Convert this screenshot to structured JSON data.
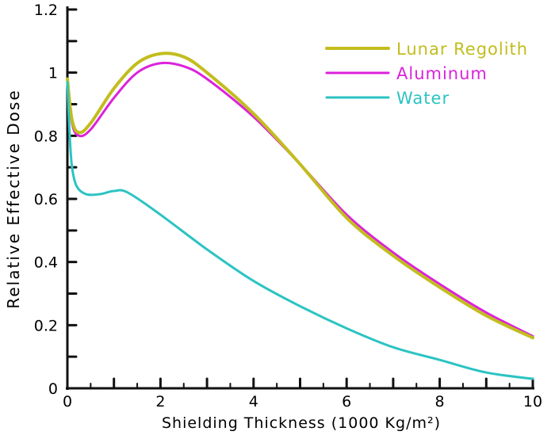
{
  "chart_data": {
    "type": "line",
    "title": "",
    "xlabel": "Shielding Thickness (1000 Kg/m²)",
    "ylabel": "Relative Effective Dose",
    "xlim": [
      0,
      10
    ],
    "ylim": [
      0,
      1.2
    ],
    "xticks": [
      0,
      2,
      4,
      6,
      8,
      10
    ],
    "xtick_labels": [
      "0",
      "2",
      "4",
      "6",
      "8",
      "10"
    ],
    "yticks": [
      0,
      0.2,
      0.4,
      0.6,
      0.8,
      1,
      1.2
    ],
    "ytick_labels": [
      "0",
      "0.2",
      "0.4",
      "0.6",
      "0.8",
      "1",
      "1.2"
    ],
    "grid": false,
    "legend_position": "top-right",
    "series": [
      {
        "name": "Lunar Regolith",
        "color": "#c2bd1e",
        "x": [
          0,
          0.1,
          0.25,
          0.5,
          1,
          1.5,
          2,
          2.5,
          3,
          4,
          5,
          6,
          7,
          8,
          9,
          10
        ],
        "y": [
          0.98,
          0.85,
          0.81,
          0.84,
          0.95,
          1.03,
          1.06,
          1.05,
          1.0,
          0.87,
          0.71,
          0.54,
          0.42,
          0.32,
          0.23,
          0.16
        ]
      },
      {
        "name": "Aluminum",
        "color": "#db22db",
        "x": [
          0,
          0.1,
          0.25,
          0.5,
          1,
          1.5,
          2,
          2.5,
          3,
          4,
          5,
          6,
          7,
          8,
          9,
          10
        ],
        "y": [
          0.98,
          0.84,
          0.8,
          0.82,
          0.92,
          1.0,
          1.03,
          1.02,
          0.98,
          0.86,
          0.71,
          0.55,
          0.43,
          0.33,
          0.24,
          0.165
        ]
      },
      {
        "name": "Water",
        "color": "#2cc3c3",
        "x": [
          0,
          0.05,
          0.1,
          0.2,
          0.4,
          0.7,
          1,
          1.3,
          2,
          3,
          4,
          5,
          6,
          7,
          8,
          9,
          10
        ],
        "y": [
          0.97,
          0.8,
          0.7,
          0.64,
          0.615,
          0.615,
          0.625,
          0.62,
          0.55,
          0.44,
          0.34,
          0.26,
          0.19,
          0.13,
          0.09,
          0.05,
          0.03
        ]
      }
    ]
  }
}
